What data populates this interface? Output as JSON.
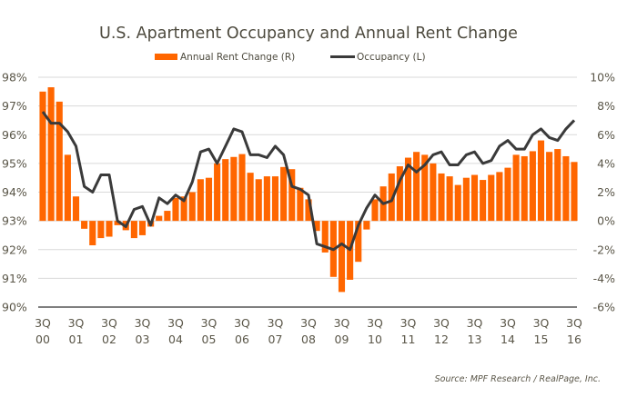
{
  "chart_data": {
    "type": "bar+line",
    "title": "U.S. Apartment Occupancy and Annual Rent Change",
    "source": "Source: MPF Research / RealPage, Inc.",
    "legend": {
      "placement": "top-center",
      "entries": [
        {
          "name": "Annual Rent Change (R)",
          "kind": "bar",
          "color": "#ff6600"
        },
        {
          "name": "Occupancy (L)",
          "kind": "line",
          "color": "#3a3a3a"
        }
      ]
    },
    "x_tick_labels": [
      [
        "3Q",
        "00"
      ],
      [
        "3Q",
        "01"
      ],
      [
        "3Q",
        "02"
      ],
      [
        "3Q",
        "03"
      ],
      [
        "3Q",
        "04"
      ],
      [
        "3Q",
        "05"
      ],
      [
        "3Q",
        "06"
      ],
      [
        "3Q",
        "07"
      ],
      [
        "3Q",
        "08"
      ],
      [
        "3Q",
        "09"
      ],
      [
        "3Q",
        "10"
      ],
      [
        "3Q",
        "11"
      ],
      [
        "3Q",
        "12"
      ],
      [
        "3Q",
        "13"
      ],
      [
        "3Q",
        "14"
      ],
      [
        "3Q",
        "15"
      ],
      [
        "3Q",
        "16"
      ]
    ],
    "x_range": {
      "start": "3Q00",
      "end": "3Q16",
      "periods": 65
    },
    "y_left": {
      "label": "Occupancy",
      "min": 90,
      "max": 98,
      "step": 1,
      "ticks": [
        "90%",
        "91%",
        "92%",
        "93%",
        "94%",
        "95%",
        "96%",
        "97%",
        "98%"
      ]
    },
    "y_right": {
      "label": "Annual Rent Change",
      "min": -6,
      "max": 10,
      "step": 2,
      "ticks": [
        "-6%",
        "-4%",
        "-2%",
        "0%",
        "2%",
        "4%",
        "6%",
        "8%",
        "10%"
      ]
    },
    "grid": true,
    "series": [
      {
        "name": "Annual Rent Change (R)",
        "type": "bar",
        "axis": "right",
        "color": "#ff6600",
        "values": [
          9.0,
          9.3,
          8.3,
          4.6,
          1.7,
          -0.55,
          -1.7,
          -1.2,
          -1.1,
          -0.3,
          -0.65,
          -1.2,
          -1.0,
          -0.4,
          0.35,
          0.7,
          1.6,
          1.7,
          2.0,
          2.9,
          3.0,
          4.0,
          4.3,
          4.45,
          4.65,
          3.35,
          2.9,
          3.1,
          3.1,
          3.75,
          3.6,
          2.3,
          1.5,
          -0.7,
          -2.2,
          -3.9,
          -4.95,
          -4.1,
          -2.85,
          -0.6,
          1.5,
          2.4,
          3.3,
          3.8,
          4.4,
          4.8,
          4.6,
          4.0,
          3.3,
          3.1,
          2.5,
          3.0,
          3.2,
          2.85,
          3.2,
          3.4,
          3.7,
          4.6,
          4.5,
          4.85,
          5.6,
          4.8,
          5.0,
          4.5,
          4.1
        ]
      },
      {
        "name": "Occupancy (L)",
        "type": "line",
        "axis": "left",
        "color": "#3a3a3a",
        "values": [
          96.8,
          96.4,
          96.4,
          96.1,
          95.6,
          94.2,
          94.0,
          94.6,
          94.6,
          93.0,
          92.8,
          93.4,
          93.5,
          92.85,
          93.8,
          93.6,
          93.9,
          93.7,
          94.35,
          95.4,
          95.5,
          95.0,
          95.6,
          96.2,
          96.1,
          95.3,
          95.3,
          95.2,
          95.6,
          95.3,
          94.2,
          94.1,
          93.9,
          92.2,
          92.1,
          92.0,
          92.2,
          92.0,
          92.85,
          93.45,
          93.9,
          93.6,
          93.7,
          94.4,
          94.95,
          94.7,
          94.95,
          95.3,
          95.4,
          94.95,
          94.95,
          95.3,
          95.4,
          95.0,
          95.1,
          95.6,
          95.8,
          95.5,
          95.5,
          96.0,
          96.2,
          95.9,
          95.8,
          96.2,
          96.5
        ]
      }
    ]
  }
}
